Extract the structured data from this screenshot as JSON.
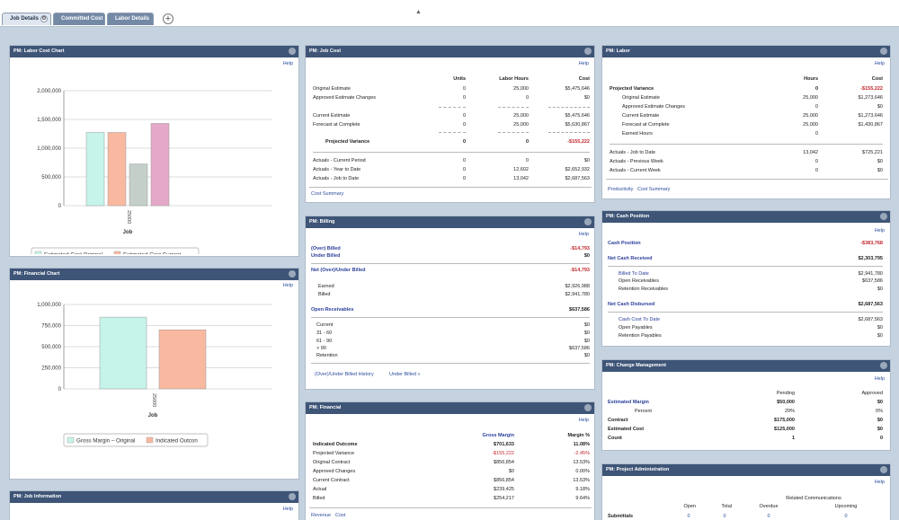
{
  "tabs": {
    "t1": "Job Details",
    "t2": "Committed Cost",
    "t3": "Labor Details"
  },
  "help": "Help",
  "labor_chart": {
    "title": "PM: Labor Cost Chart",
    "chart_data": {
      "type": "bar",
      "categories": [
        "25000"
      ],
      "xlabel": "Job",
      "ylim": [
        0,
        2000000
      ],
      "yticks": [
        "0",
        "500,000",
        "1,000,000",
        "1,500,000",
        "2,000,000"
      ],
      "series": [
        {
          "name": "Estimated Cost Original",
          "values": [
            1273646
          ],
          "color": "#c6f4ea"
        },
        {
          "name": "Estimated Cost Current",
          "values": [
            1273646
          ],
          "color": "#f9b8a0"
        },
        {
          "name": "Actual Cost Job to Date",
          "values": [
            725221
          ],
          "color": "#c3cfc8"
        },
        {
          "name": "Forecast at Complete Cost",
          "values": [
            1430867
          ],
          "color": "#e6a8c8"
        }
      ]
    }
  },
  "fin_chart": {
    "title": "PM: Financial Chart",
    "chart_data": {
      "type": "bar",
      "categories": [
        "25000"
      ],
      "xlabel": "Job",
      "ylim": [
        0,
        1000000
      ],
      "yticks": [
        "0",
        "250,000",
        "500,000",
        "750,000",
        "1,000,000"
      ],
      "series": [
        {
          "name": "Gross Margin – Original",
          "values": [
            850000
          ],
          "color": "#c6f4ea"
        },
        {
          "name": "Indicated Outcon",
          "values": [
            700000
          ],
          "color": "#f9b8a0"
        }
      ]
    }
  },
  "job_info": {
    "title": "PM: Job Information"
  },
  "job_cost": {
    "title": "PM: Job Cost",
    "cols": [
      "Units",
      "Labor Hours",
      "Cost"
    ],
    "r1": [
      "Original Estimate",
      "0",
      "25,000",
      "$5,475,646"
    ],
    "r2": [
      "Approved Estimate Changes",
      "0",
      "0",
      "$0"
    ],
    "r3": [
      "Current Estimate",
      "0",
      "25,000",
      "$5,475,646"
    ],
    "r4": [
      "Forecast at Complete",
      "0",
      "25,000",
      "$5,630,867"
    ],
    "r5": [
      "Projected Variance",
      "0",
      "0",
      "-$155,222"
    ],
    "r6": [
      "Actuals - Current Period",
      "0",
      "0",
      "$0"
    ],
    "r7": [
      "Actuals - Year to Date",
      "0",
      "12,602",
      "$2,652,932"
    ],
    "r8": [
      "Actuals - Job to Date",
      "0",
      "13,042",
      "$2,687,563"
    ],
    "link": "Cost Summary"
  },
  "billing": {
    "title": "PM: Billing",
    "over": [
      "(Over) Billed",
      "-$14,793"
    ],
    "under": [
      "Under Billed",
      "$0"
    ],
    "net": [
      "Net (Over)/Under Billed",
      "-$14,793"
    ],
    "earned": [
      "Earned",
      "$2,926,988"
    ],
    "billed": [
      "Billed",
      "$2,941,780"
    ],
    "open": [
      "Open Receivables",
      "$637,586"
    ],
    "cur": [
      "Current",
      "$0"
    ],
    "a31": [
      "31 - 60",
      "$0"
    ],
    "a61": [
      "61 - 90",
      "$0"
    ],
    "a90": [
      "> 90",
      "$637,586"
    ],
    "ret": [
      "Retention",
      "$0"
    ],
    "link1": "(Over)/Under Billed History",
    "link2": "Under Billed »"
  },
  "financial": {
    "title": "PM: Financial",
    "cols": [
      "Gross Margin",
      "Margin %"
    ],
    "r1": [
      "Indicated Outcome",
      "$701,633",
      "11.08%"
    ],
    "r2": [
      "Projected Variance",
      "-$155,222",
      "-2.45%"
    ],
    "r3": [
      "Original Contract",
      "$856,854",
      "13.53%"
    ],
    "r4": [
      "Approved Changes",
      "$0",
      "0.00%"
    ],
    "r5": [
      "Current Contract",
      "$856,854",
      "13.53%"
    ],
    "r6": [
      "Actual",
      "$239,425",
      "9.18%"
    ],
    "r7": [
      "Billed",
      "$254,217",
      "9.64%"
    ],
    "link1": "Revenue",
    "link2": "Cost"
  },
  "labor": {
    "title": "PM: Labor",
    "cols": [
      "Hours",
      "Cost"
    ],
    "r1": [
      "Projected Variance",
      "0",
      "-$155,222"
    ],
    "r2": [
      "Original Estimate",
      "25,000",
      "$1,273,646"
    ],
    "r3": [
      "Approved Estimate Changes",
      "0",
      "$0"
    ],
    "r4": [
      "Current Estimate",
      "25,000",
      "$1,273,646"
    ],
    "r5": [
      "Forecast at Complete",
      "25,000",
      "$1,430,867"
    ],
    "r6": [
      "Earned Hours",
      "0",
      ""
    ],
    "r7": [
      "Actuals - Job to Date",
      "13,042",
      "$725,221"
    ],
    "r8": [
      "Actuals - Previous Week",
      "0",
      "$0"
    ],
    "r9": [
      "Actuals - Current Week",
      "0",
      "$0"
    ],
    "link1": "Productivity",
    "link2": "Cost Summary"
  },
  "cash": {
    "title": "PM: Cash Position",
    "pos": [
      "Cash Position",
      "-$383,768"
    ],
    "recv": [
      "Net Cash Received",
      "$2,303,795"
    ],
    "billed": [
      "Billed To Date",
      "$2,941,780"
    ],
    "openr": [
      "Open Receivables",
      "$637,586"
    ],
    "retr": [
      "Retention Receivables",
      "$0"
    ],
    "disb": [
      "Net Cash Disbursed",
      "$2,687,563"
    ],
    "cost": [
      "Cash Cost To Date",
      "$2,687,563"
    ],
    "openp": [
      "Open Payables",
      "$0"
    ],
    "retp": [
      "Retention Payables",
      "$0"
    ]
  },
  "change": {
    "title": "PM: Change Management",
    "cols": [
      "Pending",
      "Approved"
    ],
    "r1": [
      "Estimated Margin",
      "$50,000",
      "$0"
    ],
    "r2": [
      "Percent",
      "29%",
      "0%"
    ],
    "r3": [
      "Contract",
      "$175,000",
      "$0"
    ],
    "r4": [
      "Estimated Cost",
      "$125,000",
      "$0"
    ],
    "r5": [
      "Count",
      "1",
      "0"
    ]
  },
  "admin": {
    "title": "PM: Project Administration",
    "group": "Related Communications",
    "cols": [
      "Open",
      "Total",
      "Overdue",
      "Upcoming"
    ],
    "r1": [
      "Submittals",
      "0",
      "0",
      "0",
      "0"
    ]
  }
}
